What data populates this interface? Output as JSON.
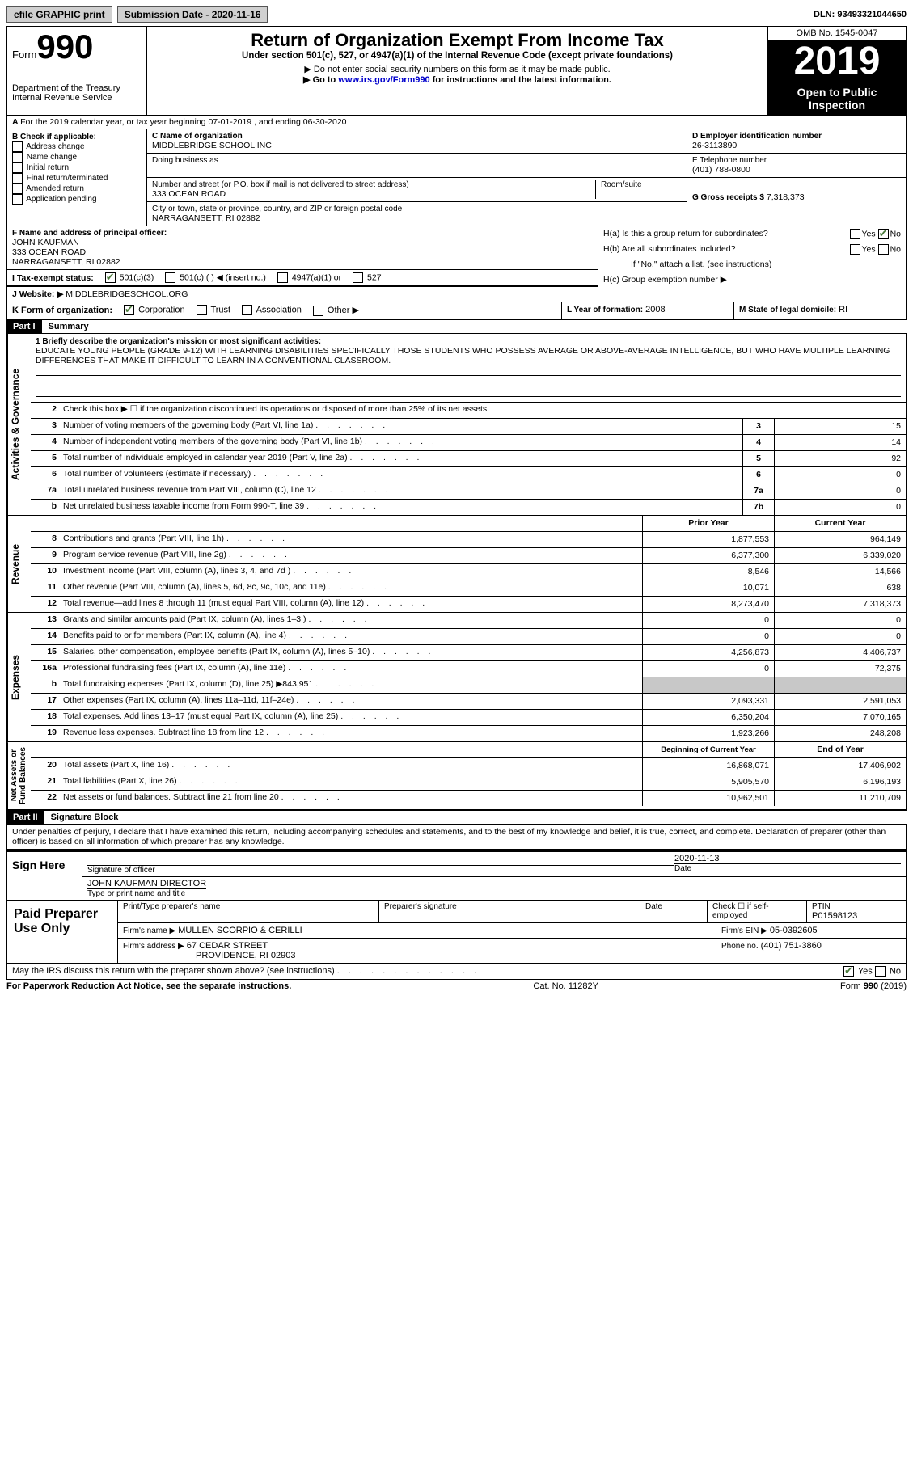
{
  "topbar": {
    "efile": "efile GRAPHIC print",
    "submission": "Submission Date - 2020-11-16",
    "dln": "DLN: 93493321044650"
  },
  "header": {
    "form_word": "Form",
    "form_num": "990",
    "dept": "Department of the Treasury\nInternal Revenue Service",
    "title": "Return of Organization Exempt From Income Tax",
    "subtitle": "Under section 501(c), 527, or 4947(a)(1) of the Internal Revenue Code (except private foundations)",
    "note1": "▶ Do not enter social security numbers on this form as it may be made public.",
    "note2_pre": "▶ Go to ",
    "note2_link": "www.irs.gov/Form990",
    "note2_post": " for instructions and the latest information.",
    "omb": "OMB No. 1545-0047",
    "year": "2019",
    "open": "Open to Public Inspection"
  },
  "a_line": "For the 2019 calendar year, or tax year beginning 07-01-2019    , and ending 06-30-2020",
  "b": {
    "title": "B Check if applicable:",
    "items": [
      "Address change",
      "Name change",
      "Initial return",
      "Final return/terminated",
      "Amended return",
      "Application pending"
    ]
  },
  "c": {
    "name_label": "C Name of organization",
    "name": "MIDDLEBRIDGE SCHOOL INC",
    "dba_label": "Doing business as",
    "street_label": "Number and street (or P.O. box if mail is not delivered to street address)",
    "room_label": "Room/suite",
    "street": "333 OCEAN ROAD",
    "city_label": "City or town, state or province, country, and ZIP or foreign postal code",
    "city": "NARRAGANSETT, RI  02882"
  },
  "d": {
    "label": "D Employer identification number",
    "value": "26-3113890"
  },
  "e": {
    "label": "E Telephone number",
    "value": "(401) 788-0800"
  },
  "g": {
    "label": "G Gross receipts $",
    "value": "7,318,373"
  },
  "f": {
    "label": "F  Name and address of principal officer:",
    "name": "JOHN KAUFMAN",
    "street": "333 OCEAN ROAD",
    "city": "NARRAGANSETT, RI  02882"
  },
  "h": {
    "a_label": "H(a)  Is this a group return for subordinates?",
    "b_label": "H(b)  Are all subordinates included?",
    "note": "If \"No,\" attach a list. (see instructions)",
    "c_label": "H(c)  Group exemption number ▶",
    "yes": "Yes",
    "no": "No"
  },
  "i": {
    "label": "I   Tax-exempt status:",
    "opts": [
      "501(c)(3)",
      "501(c) (  ) ◀ (insert no.)",
      "4947(a)(1) or",
      "527"
    ]
  },
  "j": {
    "label": "J   Website: ▶",
    "value": "MIDDLEBRIDGESCHOOL.ORG"
  },
  "k": {
    "label": "K Form of organization:",
    "opts": [
      "Corporation",
      "Trust",
      "Association",
      "Other ▶"
    ]
  },
  "l": {
    "label": "L Year of formation:",
    "value": "2008"
  },
  "m": {
    "label": "M State of legal domicile:",
    "value": "RI"
  },
  "part1": {
    "label": "Part I",
    "title": "Summary"
  },
  "mission": {
    "label": "1   Briefly describe the organization's mission or most significant activities:",
    "text": "EDUCATE YOUNG PEOPLE (GRADE 9-12) WITH LEARNING DISABILITIES SPECIFICALLY THOSE STUDENTS WHO POSSESS AVERAGE OR ABOVE-AVERAGE INTELLIGENCE, BUT WHO HAVE MULTIPLE LEARNING DIFFERENCES THAT MAKE IT DIFFICULT TO LEARN IN A CONVENTIONAL CLASSROOM."
  },
  "gov_lines": {
    "l2": "Check this box ▶ ☐  if the organization discontinued its operations or disposed of more than 25% of its net assets.",
    "l3": {
      "num": "3",
      "desc": "Number of voting members of the governing body (Part VI, line 1a)",
      "box": "3",
      "val": "15"
    },
    "l4": {
      "num": "4",
      "desc": "Number of independent voting members of the governing body (Part VI, line 1b)",
      "box": "4",
      "val": "14"
    },
    "l5": {
      "num": "5",
      "desc": "Total number of individuals employed in calendar year 2019 (Part V, line 2a)",
      "box": "5",
      "val": "92"
    },
    "l6": {
      "num": "6",
      "desc": "Total number of volunteers (estimate if necessary)",
      "box": "6",
      "val": "0"
    },
    "l7a": {
      "num": "7a",
      "desc": "Total unrelated business revenue from Part VIII, column (C), line 12",
      "box": "7a",
      "val": "0"
    },
    "l7b": {
      "num": "b",
      "desc": "Net unrelated business taxable income from Form 990-T, line 39",
      "box": "7b",
      "val": "0"
    }
  },
  "rev_header": {
    "prior": "Prior Year",
    "current": "Current Year"
  },
  "revenue": [
    {
      "num": "8",
      "desc": "Contributions and grants (Part VIII, line 1h)",
      "prior": "1,877,553",
      "curr": "964,149"
    },
    {
      "num": "9",
      "desc": "Program service revenue (Part VIII, line 2g)",
      "prior": "6,377,300",
      "curr": "6,339,020"
    },
    {
      "num": "10",
      "desc": "Investment income (Part VIII, column (A), lines 3, 4, and 7d )",
      "prior": "8,546",
      "curr": "14,566"
    },
    {
      "num": "11",
      "desc": "Other revenue (Part VIII, column (A), lines 5, 6d, 8c, 9c, 10c, and 11e)",
      "prior": "10,071",
      "curr": "638"
    },
    {
      "num": "12",
      "desc": "Total revenue—add lines 8 through 11 (must equal Part VIII, column (A), line 12)",
      "prior": "8,273,470",
      "curr": "7,318,373"
    }
  ],
  "expenses": [
    {
      "num": "13",
      "desc": "Grants and similar amounts paid (Part IX, column (A), lines 1–3 )",
      "prior": "0",
      "curr": "0"
    },
    {
      "num": "14",
      "desc": "Benefits paid to or for members (Part IX, column (A), line 4)",
      "prior": "0",
      "curr": "0"
    },
    {
      "num": "15",
      "desc": "Salaries, other compensation, employee benefits (Part IX, column (A), lines 5–10)",
      "prior": "4,256,873",
      "curr": "4,406,737"
    },
    {
      "num": "16a",
      "desc": "Professional fundraising fees (Part IX, column (A), line 11e)",
      "prior": "0",
      "curr": "72,375"
    },
    {
      "num": "b",
      "desc": "Total fundraising expenses (Part IX, column (D), line 25) ▶843,951",
      "prior": "",
      "curr": "",
      "shaded": true
    },
    {
      "num": "17",
      "desc": "Other expenses (Part IX, column (A), lines 11a–11d, 11f–24e)",
      "prior": "2,093,331",
      "curr": "2,591,053"
    },
    {
      "num": "18",
      "desc": "Total expenses. Add lines 13–17 (must equal Part IX, column (A), line 25)",
      "prior": "6,350,204",
      "curr": "7,070,165"
    },
    {
      "num": "19",
      "desc": "Revenue less expenses. Subtract line 18 from line 12",
      "prior": "1,923,266",
      "curr": "248,208"
    }
  ],
  "na_header": {
    "prior": "Beginning of Current Year",
    "current": "End of Year"
  },
  "netassets": [
    {
      "num": "20",
      "desc": "Total assets (Part X, line 16)",
      "prior": "16,868,071",
      "curr": "17,406,902"
    },
    {
      "num": "21",
      "desc": "Total liabilities (Part X, line 26)",
      "prior": "5,905,570",
      "curr": "6,196,193"
    },
    {
      "num": "22",
      "desc": "Net assets or fund balances. Subtract line 21 from line 20",
      "prior": "10,962,501",
      "curr": "11,210,709"
    }
  ],
  "part2": {
    "label": "Part II",
    "title": "Signature Block"
  },
  "perjury": "Under penalties of perjury, I declare that I have examined this return, including accompanying schedules and statements, and to the best of my knowledge and belief, it is true, correct, and complete. Declaration of preparer (other than officer) is based on all information of which preparer has any knowledge.",
  "sign": {
    "here": "Sign Here",
    "sig_label": "Signature of officer",
    "date": "2020-11-13",
    "date_label": "Date",
    "name": "JOHN KAUFMAN  DIRECTOR",
    "name_label": "Type or print name and title"
  },
  "preparer": {
    "title": "Paid Preparer Use Only",
    "h1": "Print/Type preparer's name",
    "h2": "Preparer's signature",
    "h3": "Date",
    "h4_pre": "Check ☐ if self-employed",
    "h5": "PTIN",
    "ptin": "P01598123",
    "firm_label": "Firm's name    ▶",
    "firm": "MULLEN SCORPIO & CERILLI",
    "ein_label": "Firm's EIN ▶",
    "ein": "05-0392605",
    "addr_label": "Firm's address ▶",
    "addr1": "67 CEDAR STREET",
    "addr2": "PROVIDENCE, RI  02903",
    "phone_label": "Phone no.",
    "phone": "(401) 751-3860"
  },
  "discuss": "May the IRS discuss this return with the preparer shown above? (see instructions)",
  "footer": {
    "left": "For Paperwork Reduction Act Notice, see the separate instructions.",
    "mid": "Cat. No. 11282Y",
    "right": "Form 990 (2019)"
  },
  "vlabels": {
    "gov": "Activities & Governance",
    "rev": "Revenue",
    "exp": "Expenses",
    "na": "Net Assets or\nFund Balances"
  }
}
